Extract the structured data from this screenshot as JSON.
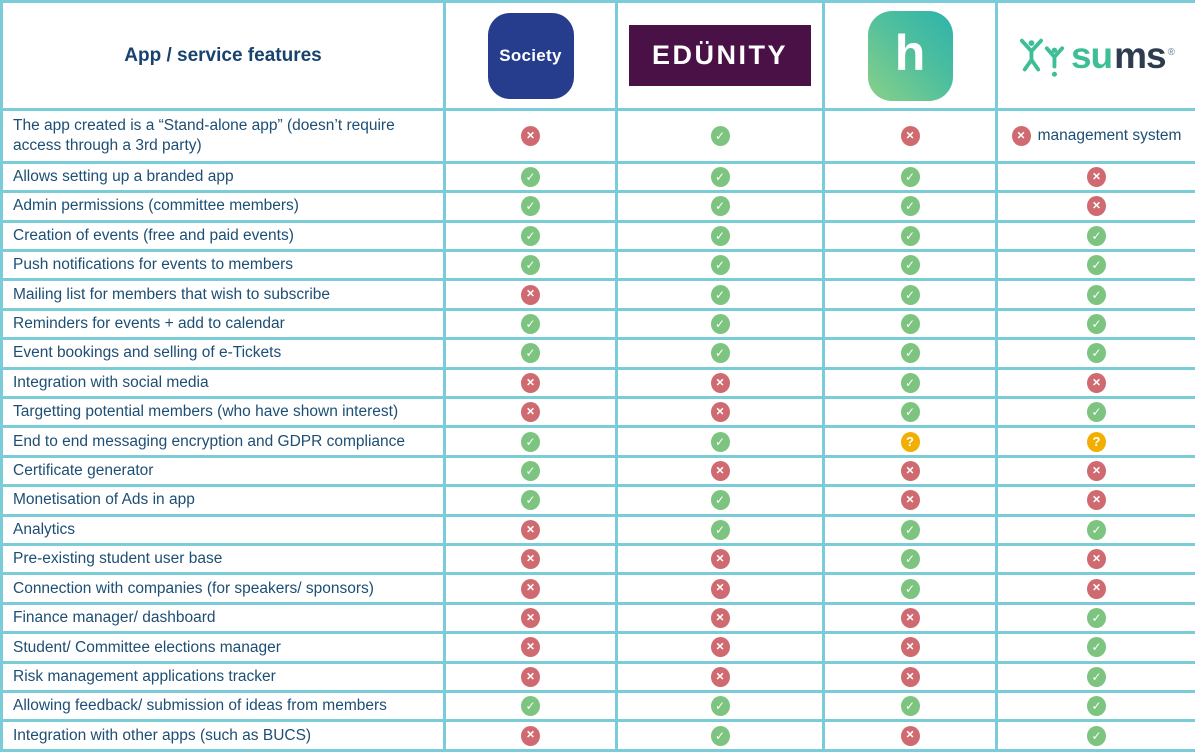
{
  "colors": {
    "grid_border": "#7accd9",
    "text": "#1d4e74",
    "status_yes": "#7cc47f",
    "status_no": "#cf6a70",
    "status_unknown": "#f2ae01",
    "society_bg": "#263c8d",
    "edunity_bg": "#491146",
    "h_gradient_top_right": "#2eb3ab",
    "h_gradient_bottom_left": "#8ad089",
    "sums_green": "#3dbe96",
    "sums_navy": "#2e3c50"
  },
  "icons": {
    "yes": "✓",
    "no": "✕",
    "unknown": "?"
  },
  "header": {
    "feature_title": "App / service features",
    "apps": [
      {
        "id": "society",
        "logo_text": "Society"
      },
      {
        "id": "edunity",
        "logo_text": "EDÜNITY"
      },
      {
        "id": "h-app",
        "logo_text": "h"
      },
      {
        "id": "sums",
        "logo_text_green": "su",
        "logo_text_dark": "ms",
        "trademark": "®"
      }
    ]
  },
  "chart_data": {
    "type": "table",
    "title": "App / service features",
    "columns": [
      "App / service features",
      "Society",
      "EDÜNITY",
      "h",
      "sums"
    ],
    "value_legend": {
      "yes": "green check — feature available",
      "no": "red cross — feature not available",
      "unknown": "amber question mark — unclear"
    },
    "rows": [
      {
        "feature": "The app created is a “Stand-alone app” (doesn’t require access through a 3rd party)",
        "values": {
          "society": "no",
          "edunity": "yes",
          "h": "no",
          "sums": "no"
        },
        "note": "management system"
      },
      {
        "feature": "Allows setting up a branded app",
        "values": {
          "society": "yes",
          "edunity": "yes",
          "h": "yes",
          "sums": "no"
        }
      },
      {
        "feature": "Admin permissions (committee members)",
        "values": {
          "society": "yes",
          "edunity": "yes",
          "h": "yes",
          "sums": "no"
        }
      },
      {
        "feature": "Creation of events (free and paid events)",
        "values": {
          "society": "yes",
          "edunity": "yes",
          "h": "yes",
          "sums": "yes"
        }
      },
      {
        "feature": "Push notifications for events to members",
        "values": {
          "society": "yes",
          "edunity": "yes",
          "h": "yes",
          "sums": "yes"
        }
      },
      {
        "feature": "Mailing list for members that wish to subscribe",
        "values": {
          "society": "no",
          "edunity": "yes",
          "h": "yes",
          "sums": "yes"
        }
      },
      {
        "feature": "Reminders for events + add to calendar",
        "values": {
          "society": "yes",
          "edunity": "yes",
          "h": "yes",
          "sums": "yes"
        }
      },
      {
        "feature": "Event bookings and selling of e-Tickets",
        "values": {
          "society": "yes",
          "edunity": "yes",
          "h": "yes",
          "sums": "yes"
        }
      },
      {
        "feature": "Integration with social media",
        "values": {
          "society": "no",
          "edunity": "no",
          "h": "yes",
          "sums": "no"
        }
      },
      {
        "feature": "Targetting potential members (who have shown interest)",
        "values": {
          "society": "no",
          "edunity": "no",
          "h": "yes",
          "sums": "yes"
        }
      },
      {
        "feature": "End to end messaging encryption and GDPR compliance",
        "values": {
          "society": "yes",
          "edunity": "yes",
          "h": "unknown",
          "sums": "unknown"
        }
      },
      {
        "feature": "Certificate generator",
        "values": {
          "society": "yes",
          "edunity": "no",
          "h": "no",
          "sums": "no"
        }
      },
      {
        "feature": "Monetisation of Ads in app",
        "values": {
          "society": "yes",
          "edunity": "yes",
          "h": "no",
          "sums": "no"
        }
      },
      {
        "feature": "Analytics",
        "values": {
          "society": "no",
          "edunity": "yes",
          "h": "yes",
          "sums": "yes"
        }
      },
      {
        "feature": "Pre-existing student user base",
        "values": {
          "society": "no",
          "edunity": "no",
          "h": "yes",
          "sums": "no"
        }
      },
      {
        "feature": "Connection with companies (for speakers/ sponsors)",
        "values": {
          "society": "no",
          "edunity": "no",
          "h": "yes",
          "sums": "no"
        }
      },
      {
        "feature": "Finance manager/ dashboard",
        "values": {
          "society": "no",
          "edunity": "no",
          "h": "no",
          "sums": "yes"
        }
      },
      {
        "feature": "Student/ Committee elections manager",
        "values": {
          "society": "no",
          "edunity": "no",
          "h": "no",
          "sums": "yes"
        }
      },
      {
        "feature": "Risk management applications tracker",
        "values": {
          "society": "no",
          "edunity": "no",
          "h": "no",
          "sums": "yes"
        }
      },
      {
        "feature": "Allowing feedback/ submission of ideas from members",
        "values": {
          "society": "yes",
          "edunity": "yes",
          "h": "yes",
          "sums": "yes"
        }
      },
      {
        "feature": "Integration with other apps (such as BUCS)",
        "values": {
          "society": "no",
          "edunity": "yes",
          "h": "no",
          "sums": "yes"
        }
      }
    ]
  }
}
